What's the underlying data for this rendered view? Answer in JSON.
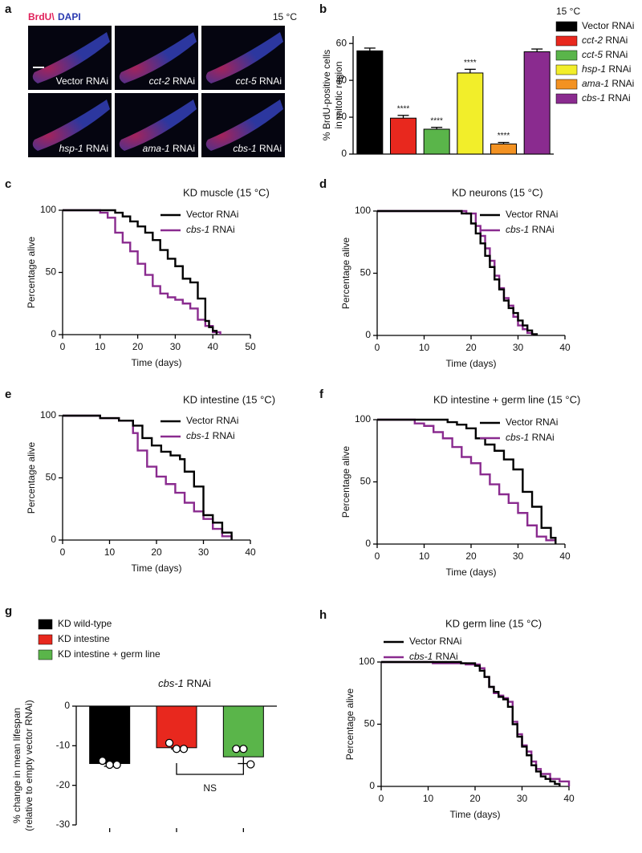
{
  "image_panel": {
    "panel": "a",
    "stain": [
      "BrdU\\",
      "DAPI"
    ],
    "temperature": "15 °C",
    "labels": [
      "Vector RNAi",
      "cct-2 RNAi",
      "cct-5 RNAi",
      "hsp-1 RNAi",
      "ama-1 RNAi",
      "cbs-1 RNAi"
    ]
  },
  "chart_data": [
    {
      "panel": "b",
      "type": "bar",
      "legend_title": "15 °C",
      "ylabel": [
        "% BrdU-positive cells",
        "in mitotic region"
      ],
      "categories": [
        "Vector RNAi",
        "cct-2 RNAi",
        "cct-5 RNAi",
        "hsp-1 RNAi",
        "ama-1 RNAi",
        "cbs-1 RNAi"
      ],
      "colors": [
        "#000000",
        "#e8281e",
        "#5ab54a",
        "#f2ee2a",
        "#f39222",
        "#8a2b8f"
      ],
      "values": [
        56,
        19.5,
        13.5,
        44,
        5.5,
        55.5
      ],
      "errors": [
        1.5,
        1.5,
        1,
        2,
        0.8,
        1.5
      ],
      "annotations": [
        null,
        "****",
        "****",
        "****",
        "****",
        null
      ],
      "ylim": [
        0,
        64
      ],
      "yticks": [
        0,
        20,
        40,
        60
      ]
    },
    {
      "panel": "c",
      "type": "line",
      "drawstyle": "steps-post",
      "title": "KD muscle (15 °C)",
      "xlabel": "Time (days)",
      "ylabel": "Percentage alive",
      "xlim": [
        0,
        50
      ],
      "xticks": [
        0,
        10,
        20,
        30,
        40,
        50
      ],
      "ylim": [
        0,
        100
      ],
      "yticks": [
        0,
        50,
        100
      ],
      "series": [
        {
          "name": "Vector RNAi",
          "color": "#000000",
          "x": [
            0,
            14,
            16,
            18,
            20,
            22,
            24,
            26,
            28,
            30,
            32,
            34,
            36,
            38,
            39,
            40,
            41
          ],
          "values": [
            100,
            98,
            95,
            91,
            87,
            82,
            76,
            68,
            61,
            55,
            45,
            42,
            29,
            11,
            6,
            3,
            0
          ]
        },
        {
          "name": "cbs-1 RNAi",
          "color": "#8a2b8f",
          "x": [
            0,
            10,
            12,
            14,
            16,
            18,
            20,
            22,
            24,
            26,
            28,
            30,
            32,
            34,
            36,
            38,
            40,
            42
          ],
          "values": [
            100,
            98,
            94,
            82,
            74,
            67,
            57,
            48,
            39,
            33,
            30,
            28,
            25,
            21,
            12,
            7,
            2,
            0
          ]
        }
      ]
    },
    {
      "panel": "d",
      "type": "line",
      "drawstyle": "steps-post",
      "title": "KD neurons (15 °C)",
      "xlabel": "Time (days)",
      "ylabel": "Percentage alive",
      "xlim": [
        0,
        40
      ],
      "xticks": [
        0,
        10,
        20,
        30,
        40
      ],
      "ylim": [
        0,
        100
      ],
      "yticks": [
        0,
        50,
        100
      ],
      "series": [
        {
          "name": "Vector RNAi",
          "color": "#000000",
          "x": [
            0,
            18,
            20,
            21,
            22,
            23,
            24,
            25,
            26,
            27,
            28,
            29,
            30,
            31,
            32,
            33,
            34
          ],
          "values": [
            100,
            98,
            90,
            82,
            74,
            64,
            55,
            45,
            37,
            28,
            22,
            18,
            12,
            8,
            4,
            1,
            0
          ]
        },
        {
          "name": "cbs-1 RNAi",
          "color": "#8a2b8f",
          "x": [
            0,
            19,
            21,
            22,
            23,
            24,
            25,
            26,
            27,
            28,
            29,
            30,
            31,
            32,
            33
          ],
          "values": [
            100,
            98,
            88,
            80,
            70,
            60,
            48,
            38,
            30,
            24,
            15,
            8,
            5,
            2,
            0
          ]
        }
      ]
    },
    {
      "panel": "e",
      "type": "line",
      "drawstyle": "steps-post",
      "title": "KD intestine (15 °C)",
      "xlabel": "Time (days)",
      "ylabel": "Percentage alive",
      "xlim": [
        0,
        40
      ],
      "xticks": [
        0,
        10,
        20,
        30,
        40
      ],
      "ylim": [
        0,
        100
      ],
      "yticks": [
        0,
        50,
        100
      ],
      "series": [
        {
          "name": "Vector RNAi",
          "color": "#000000",
          "x": [
            0,
            8,
            12,
            15,
            17,
            19,
            21,
            23,
            25,
            26,
            28,
            30,
            32,
            34,
            36
          ],
          "values": [
            100,
            98,
            96,
            92,
            82,
            76,
            71,
            68,
            65,
            55,
            43,
            20,
            14,
            6,
            0
          ]
        },
        {
          "name": "cbs-1 RNAi",
          "color": "#8a2b8f",
          "x": [
            0,
            8,
            12,
            15,
            16,
            18,
            20,
            22,
            24,
            26,
            28,
            30,
            32,
            34,
            36
          ],
          "values": [
            100,
            98,
            96,
            86,
            72,
            59,
            51,
            45,
            38,
            30,
            23,
            17,
            9,
            3,
            0
          ]
        }
      ]
    },
    {
      "panel": "f",
      "type": "line",
      "drawstyle": "steps-post",
      "title": "KD intestine + germ line (15 °C)",
      "xlabel": "Time (days)",
      "ylabel": "Percentage alive",
      "xlim": [
        0,
        40
      ],
      "xticks": [
        0,
        10,
        20,
        30,
        40
      ],
      "ylim": [
        0,
        100
      ],
      "yticks": [
        0,
        50,
        100
      ],
      "series": [
        {
          "name": "Vector RNAi",
          "color": "#000000",
          "x": [
            0,
            15,
            17,
            19,
            21,
            23,
            25,
            27,
            29,
            31,
            33,
            35,
            37,
            38
          ],
          "values": [
            100,
            98,
            96,
            93,
            85,
            80,
            75,
            68,
            60,
            42,
            30,
            13,
            5,
            0
          ]
        },
        {
          "name": "cbs-1 RNAi",
          "color": "#8a2b8f",
          "x": [
            0,
            8,
            10,
            12,
            14,
            16,
            18,
            20,
            22,
            24,
            26,
            28,
            30,
            32,
            34,
            36,
            38
          ],
          "values": [
            100,
            97,
            95,
            90,
            85,
            78,
            70,
            65,
            56,
            48,
            40,
            33,
            25,
            15,
            6,
            3,
            0
          ]
        }
      ]
    },
    {
      "panel": "g",
      "type": "bar",
      "title": "cbs-1 RNAi",
      "ylabel": [
        "% change in mean lifespan",
        "(relative to empty vector RNAi)"
      ],
      "categories": [
        "KD wild-type",
        "KD intestine",
        "KD intestine + germ line"
      ],
      "colors": [
        "#000000",
        "#e8281e",
        "#5ab54a"
      ],
      "values": [
        -14.5,
        -10.5,
        -12.8
      ],
      "errors": [
        0.7,
        0.3,
        1.7
      ],
      "points": [
        [
          -13.8,
          -14.8,
          -14.8
        ],
        [
          -9.3,
          -10.8,
          -10.8
        ],
        [
          -10.8,
          -10.8,
          -14.7
        ]
      ],
      "comparison": {
        "between": [
          1,
          2
        ],
        "label": "NS"
      },
      "ylim": [
        -30,
        0
      ],
      "yticks": [
        -30,
        -20,
        -10,
        0
      ]
    },
    {
      "panel": "h",
      "type": "line",
      "drawstyle": "steps-post",
      "title": "KD germ line (15 °C)",
      "xlabel": "Time (days)",
      "ylabel": "Percentage alive",
      "xlim": [
        0,
        40
      ],
      "xticks": [
        0,
        10,
        20,
        30,
        40
      ],
      "ylim": [
        0,
        100
      ],
      "yticks": [
        0,
        50,
        100
      ],
      "series": [
        {
          "name": "Vector RNAi",
          "color": "#000000",
          "x": [
            0,
            17,
            20,
            21,
            22,
            23,
            24,
            25,
            26,
            27,
            28,
            29,
            30,
            31,
            32,
            33,
            34,
            35,
            36,
            37,
            38
          ],
          "values": [
            100,
            99,
            97,
            93,
            88,
            80,
            76,
            72,
            70,
            64,
            50,
            40,
            32,
            25,
            17,
            12,
            8,
            6,
            4,
            2,
            0
          ]
        },
        {
          "name": "cbs-1 RNAi",
          "color": "#8a2b8f",
          "x": [
            0,
            11,
            18,
            21,
            22,
            23,
            24,
            25,
            26,
            27,
            28,
            29,
            30,
            31,
            32,
            33,
            34,
            36,
            38,
            40
          ],
          "values": [
            100,
            99,
            98,
            95,
            88,
            80,
            75,
            73,
            71,
            68,
            52,
            42,
            33,
            28,
            20,
            14,
            10,
            6,
            4,
            0
          ]
        }
      ]
    }
  ]
}
